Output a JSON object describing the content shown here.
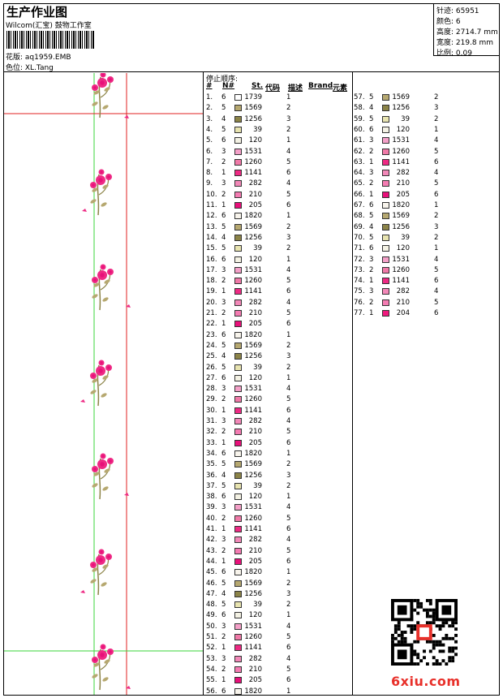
{
  "header": {
    "title": "生产作业图",
    "company": "Wilcom(汇宝) 鼓物工作室",
    "design_label": "花版: aq1959.EMB",
    "color_label": "色位: XL.Tang"
  },
  "stats": {
    "stitches": "针迹: 65951",
    "colors": "颜色: 6",
    "height": "高度: 2714.7 mm",
    "width": "宽度: 219.8 mm",
    "scale": "比例: 0.09"
  },
  "list_header": {
    "title": "停止顺序:",
    "num": "#",
    "n": "N#",
    "st": "St.",
    "code": "代码",
    "desc": "描述",
    "brand": "Brand",
    "element": "元素"
  },
  "colors": {
    "1739": "#ffffff",
    "1569": "#b6a870",
    "1256": "#8c8448",
    "39": "#e8e4b0",
    "120": "#f4f2e4",
    "1531": "#f4a0c8",
    "1260": "#f07aa8",
    "1141": "#ee2a84",
    "282": "#f288b8",
    "210": "#f47cb2",
    "205": "#e8107a",
    "1820": "#f8f4ec",
    "204": "#f01a7e"
  },
  "stops": [
    {
      "idx": "1.",
      "n": "6",
      "code": "1739",
      "st": "1"
    },
    {
      "idx": "2.",
      "n": "5",
      "code": "1569",
      "st": "2"
    },
    {
      "idx": "3.",
      "n": "4",
      "code": "1256",
      "st": "3"
    },
    {
      "idx": "4.",
      "n": "5",
      "code": "39",
      "st": "2"
    },
    {
      "idx": "5.",
      "n": "6",
      "code": "120",
      "st": "1"
    },
    {
      "idx": "6.",
      "n": "3",
      "code": "1531",
      "st": "4"
    },
    {
      "idx": "7.",
      "n": "2",
      "code": "1260",
      "st": "5"
    },
    {
      "idx": "8.",
      "n": "1",
      "code": "1141",
      "st": "6"
    },
    {
      "idx": "9.",
      "n": "3",
      "code": "282",
      "st": "4"
    },
    {
      "idx": "10.",
      "n": "2",
      "code": "210",
      "st": "5"
    },
    {
      "idx": "11.",
      "n": "1",
      "code": "205",
      "st": "6"
    },
    {
      "idx": "12.",
      "n": "6",
      "code": "1820",
      "st": "1"
    },
    {
      "idx": "13.",
      "n": "5",
      "code": "1569",
      "st": "2"
    },
    {
      "idx": "14.",
      "n": "4",
      "code": "1256",
      "st": "3"
    },
    {
      "idx": "15.",
      "n": "5",
      "code": "39",
      "st": "2"
    },
    {
      "idx": "16.",
      "n": "6",
      "code": "120",
      "st": "1"
    },
    {
      "idx": "17.",
      "n": "3",
      "code": "1531",
      "st": "4"
    },
    {
      "idx": "18.",
      "n": "2",
      "code": "1260",
      "st": "5"
    },
    {
      "idx": "19.",
      "n": "1",
      "code": "1141",
      "st": "6"
    },
    {
      "idx": "20.",
      "n": "3",
      "code": "282",
      "st": "4"
    },
    {
      "idx": "21.",
      "n": "2",
      "code": "210",
      "st": "5"
    },
    {
      "idx": "22.",
      "n": "1",
      "code": "205",
      "st": "6"
    },
    {
      "idx": "23.",
      "n": "6",
      "code": "1820",
      "st": "1"
    },
    {
      "idx": "24.",
      "n": "5",
      "code": "1569",
      "st": "2"
    },
    {
      "idx": "25.",
      "n": "4",
      "code": "1256",
      "st": "3"
    },
    {
      "idx": "26.",
      "n": "5",
      "code": "39",
      "st": "2"
    },
    {
      "idx": "27.",
      "n": "6",
      "code": "120",
      "st": "1"
    },
    {
      "idx": "28.",
      "n": "3",
      "code": "1531",
      "st": "4"
    },
    {
      "idx": "29.",
      "n": "2",
      "code": "1260",
      "st": "5"
    },
    {
      "idx": "30.",
      "n": "1",
      "code": "1141",
      "st": "6"
    },
    {
      "idx": "31.",
      "n": "3",
      "code": "282",
      "st": "4"
    },
    {
      "idx": "32.",
      "n": "2",
      "code": "210",
      "st": "5"
    },
    {
      "idx": "33.",
      "n": "1",
      "code": "205",
      "st": "6"
    },
    {
      "idx": "34.",
      "n": "6",
      "code": "1820",
      "st": "1"
    },
    {
      "idx": "35.",
      "n": "5",
      "code": "1569",
      "st": "2"
    },
    {
      "idx": "36.",
      "n": "4",
      "code": "1256",
      "st": "3"
    },
    {
      "idx": "37.",
      "n": "5",
      "code": "39",
      "st": "2"
    },
    {
      "idx": "38.",
      "n": "6",
      "code": "120",
      "st": "1"
    },
    {
      "idx": "39.",
      "n": "3",
      "code": "1531",
      "st": "4"
    },
    {
      "idx": "40.",
      "n": "2",
      "code": "1260",
      "st": "5"
    },
    {
      "idx": "41.",
      "n": "1",
      "code": "1141",
      "st": "6"
    },
    {
      "idx": "42.",
      "n": "3",
      "code": "282",
      "st": "4"
    },
    {
      "idx": "43.",
      "n": "2",
      "code": "210",
      "st": "5"
    },
    {
      "idx": "44.",
      "n": "1",
      "code": "205",
      "st": "6"
    },
    {
      "idx": "45.",
      "n": "6",
      "code": "1820",
      "st": "1"
    },
    {
      "idx": "46.",
      "n": "5",
      "code": "1569",
      "st": "2"
    },
    {
      "idx": "47.",
      "n": "4",
      "code": "1256",
      "st": "3"
    },
    {
      "idx": "48.",
      "n": "5",
      "code": "39",
      "st": "2"
    },
    {
      "idx": "49.",
      "n": "6",
      "code": "120",
      "st": "1"
    },
    {
      "idx": "50.",
      "n": "3",
      "code": "1531",
      "st": "4"
    },
    {
      "idx": "51.",
      "n": "2",
      "code": "1260",
      "st": "5"
    },
    {
      "idx": "52.",
      "n": "1",
      "code": "1141",
      "st": "6"
    },
    {
      "idx": "53.",
      "n": "3",
      "code": "282",
      "st": "4"
    },
    {
      "idx": "54.",
      "n": "2",
      "code": "210",
      "st": "5"
    },
    {
      "idx": "55.",
      "n": "1",
      "code": "205",
      "st": "6"
    },
    {
      "idx": "56.",
      "n": "6",
      "code": "1820",
      "st": "1"
    },
    {
      "idx": "57.",
      "n": "5",
      "code": "1569",
      "st": "2"
    },
    {
      "idx": "58.",
      "n": "4",
      "code": "1256",
      "st": "3"
    },
    {
      "idx": "59.",
      "n": "5",
      "code": "39",
      "st": "2"
    },
    {
      "idx": "60.",
      "n": "6",
      "code": "120",
      "st": "1"
    },
    {
      "idx": "61.",
      "n": "3",
      "code": "1531",
      "st": "4"
    },
    {
      "idx": "62.",
      "n": "2",
      "code": "1260",
      "st": "5"
    },
    {
      "idx": "63.",
      "n": "1",
      "code": "1141",
      "st": "6"
    },
    {
      "idx": "64.",
      "n": "3",
      "code": "282",
      "st": "4"
    },
    {
      "idx": "65.",
      "n": "2",
      "code": "210",
      "st": "5"
    },
    {
      "idx": "66.",
      "n": "1",
      "code": "205",
      "st": "6"
    },
    {
      "idx": "67.",
      "n": "6",
      "code": "1820",
      "st": "1"
    },
    {
      "idx": "68.",
      "n": "5",
      "code": "1569",
      "st": "2"
    },
    {
      "idx": "69.",
      "n": "4",
      "code": "1256",
      "st": "3"
    },
    {
      "idx": "70.",
      "n": "5",
      "code": "39",
      "st": "2"
    },
    {
      "idx": "71.",
      "n": "6",
      "code": "120",
      "st": "1"
    },
    {
      "idx": "72.",
      "n": "3",
      "code": "1531",
      "st": "4"
    },
    {
      "idx": "73.",
      "n": "2",
      "code": "1260",
      "st": "5"
    },
    {
      "idx": "74.",
      "n": "1",
      "code": "1141",
      "st": "6"
    },
    {
      "idx": "75.",
      "n": "3",
      "code": "282",
      "st": "4"
    },
    {
      "idx": "76.",
      "n": "2",
      "code": "210",
      "st": "5"
    },
    {
      "idx": "77.",
      "n": "1",
      "code": "204",
      "st": "6"
    }
  ],
  "watermark": "6xiu.com"
}
